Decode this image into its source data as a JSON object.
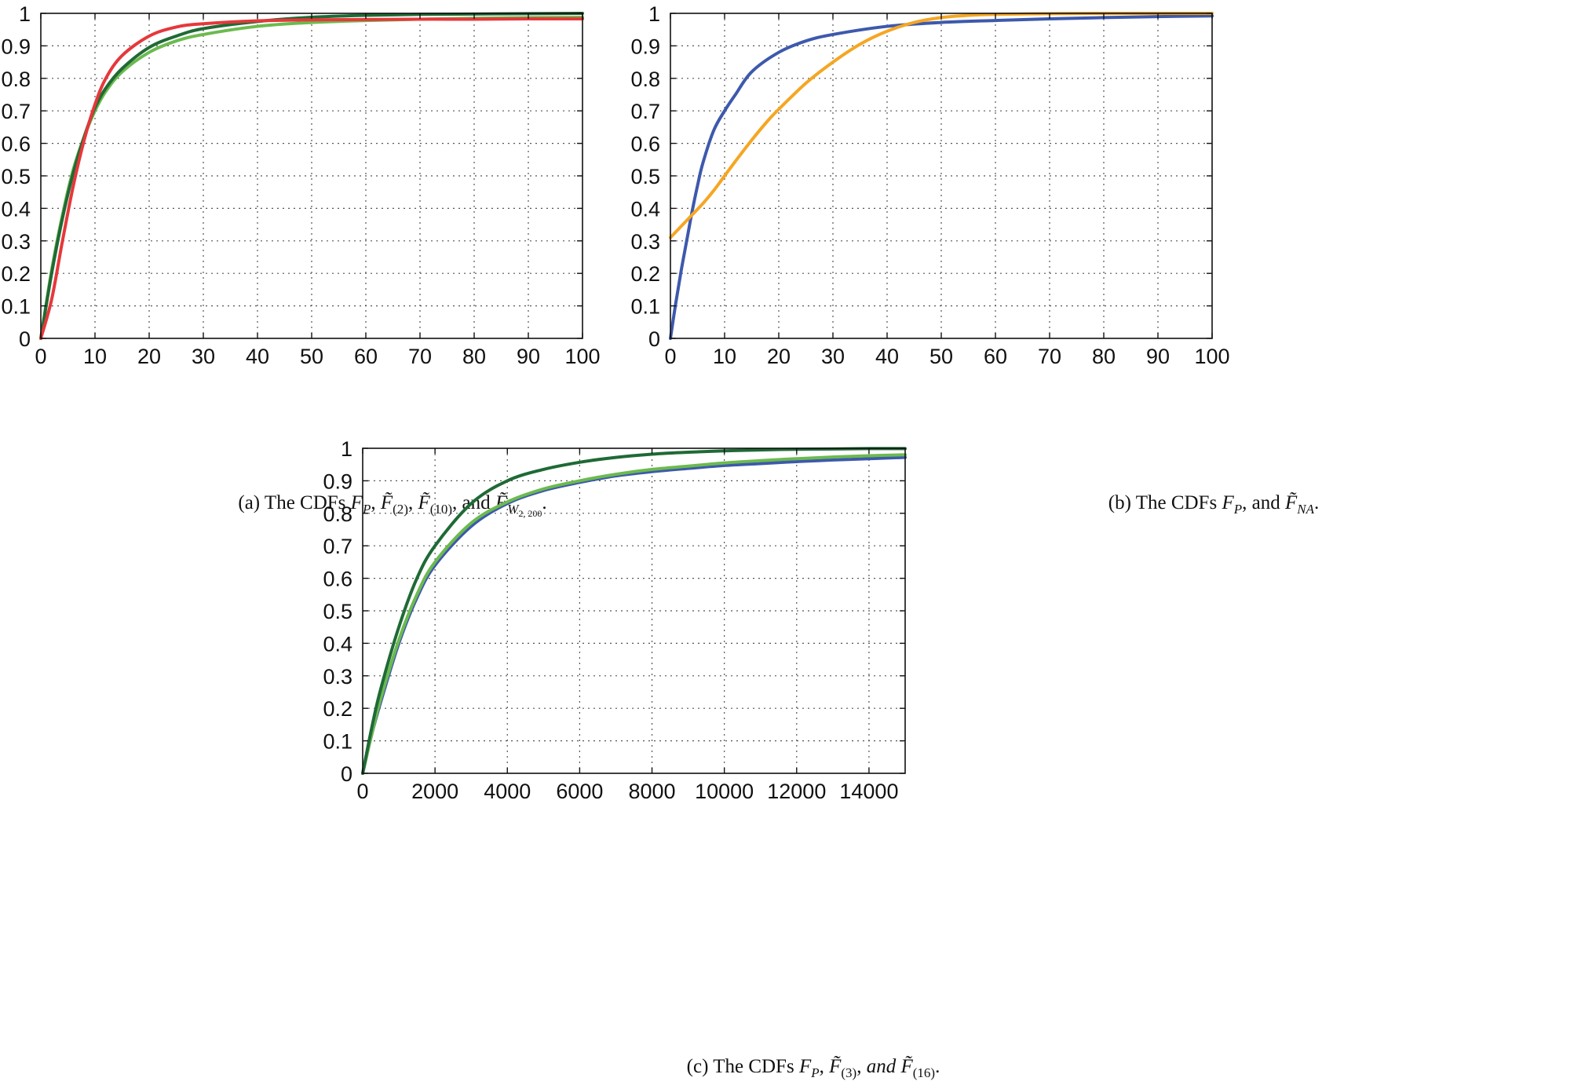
{
  "colors": {
    "dark_green": "#1f6a35",
    "light_green": "#6cba4f",
    "red": "#e5383b",
    "blue": "#3d59ac",
    "orange": "#f5a623"
  },
  "chart_data": [
    {
      "type": "line",
      "panel": "a",
      "caption": {
        "prefix": "(a) The CDFs ",
        "fp_main": "F",
        "fp_sub": "P",
        "sep1": ", ",
        "f2_main": "F̃",
        "f2_sub": "(2)",
        "sep2": ", ",
        "f10_main": "F̃",
        "f10_sub": "(10)",
        "sep3": ", and ",
        "fw_main": "F̃",
        "fw_sub": "W",
        "fw_subsub": "2, 200",
        "end": "."
      },
      "xlim": [
        0,
        100
      ],
      "ylim": [
        0,
        1
      ],
      "xticks": [
        "0",
        "10",
        "20",
        "30",
        "40",
        "50",
        "60",
        "70",
        "80",
        "90",
        "100"
      ],
      "yticks": [
        "0",
        "0.1",
        "0.2",
        "0.3",
        "0.4",
        "0.5",
        "0.6",
        "0.7",
        "0.8",
        "0.9",
        "1"
      ],
      "grid": true,
      "series": [
        {
          "color": "light_green",
          "x": [
            0,
            2,
            4,
            6,
            8,
            10,
            12,
            15,
            20,
            25,
            30,
            40,
            50,
            60,
            70,
            80,
            90,
            100
          ],
          "y": [
            0,
            0.21,
            0.38,
            0.52,
            0.62,
            0.7,
            0.76,
            0.82,
            0.88,
            0.915,
            0.935,
            0.96,
            0.972,
            0.978,
            0.982,
            0.985,
            0.987,
            0.988
          ]
        },
        {
          "color": "dark_green",
          "x": [
            0,
            2,
            4,
            6,
            8,
            10,
            12,
            15,
            20,
            25,
            30,
            40,
            50,
            60,
            70,
            80,
            90,
            100
          ],
          "y": [
            0,
            0.2,
            0.37,
            0.51,
            0.62,
            0.71,
            0.77,
            0.83,
            0.895,
            0.93,
            0.953,
            0.975,
            0.988,
            0.994,
            0.997,
            0.998,
            0.999,
            1
          ]
        },
        {
          "color": "red",
          "x": [
            0,
            2,
            4,
            6,
            8,
            10,
            12,
            15,
            20,
            25,
            30,
            40,
            50,
            60,
            70,
            80,
            90,
            100
          ],
          "y": [
            0,
            0.12,
            0.3,
            0.47,
            0.61,
            0.72,
            0.8,
            0.87,
            0.93,
            0.958,
            0.968,
            0.977,
            0.98,
            0.981,
            0.982,
            0.982,
            0.983,
            0.983
          ]
        }
      ]
    },
    {
      "type": "line",
      "panel": "b",
      "caption": {
        "prefix": "(b) The CDFs ",
        "fp_main": "F",
        "fp_sub": "P",
        "sep1": ", and ",
        "fna_main": "F̃",
        "fna_sub": "NA",
        "end": "."
      },
      "xlim": [
        0,
        100
      ],
      "ylim": [
        0,
        1
      ],
      "xticks": [
        "0",
        "10",
        "20",
        "30",
        "40",
        "50",
        "60",
        "70",
        "80",
        "90",
        "100"
      ],
      "yticks": [
        "0",
        "0.1",
        "0.2",
        "0.3",
        "0.4",
        "0.5",
        "0.6",
        "0.7",
        "0.8",
        "0.9",
        "1"
      ],
      "grid": true,
      "series": [
        {
          "color": "blue",
          "x": [
            0,
            1,
            2,
            3,
            4,
            5,
            6,
            8,
            10,
            12,
            15,
            20,
            25,
            30,
            40,
            50,
            60,
            70,
            80,
            90,
            100
          ],
          "y": [
            0,
            0.11,
            0.21,
            0.3,
            0.39,
            0.47,
            0.54,
            0.64,
            0.7,
            0.75,
            0.82,
            0.88,
            0.915,
            0.935,
            0.96,
            0.972,
            0.978,
            0.983,
            0.987,
            0.99,
            0.992
          ]
        },
        {
          "color": "orange",
          "x": [
            0,
            2,
            4,
            6,
            8,
            10,
            12,
            15,
            18,
            20,
            25,
            30,
            35,
            40,
            45,
            50,
            55,
            60,
            70,
            80,
            90,
            100
          ],
          "y": [
            0.31,
            0.345,
            0.38,
            0.415,
            0.455,
            0.5,
            0.545,
            0.61,
            0.67,
            0.705,
            0.785,
            0.85,
            0.905,
            0.945,
            0.972,
            0.987,
            0.994,
            0.997,
            0.999,
            1,
            1,
            1
          ]
        }
      ]
    },
    {
      "type": "line",
      "panel": "c",
      "caption": {
        "prefix": "(c) The CDFs ",
        "fp_main": "F",
        "fp_sub": "P",
        "sep1": ", ",
        "f3_main": "F̃",
        "f3_sub": "(3)",
        "sep2": ", ",
        "and_word": "and",
        "sep3": " ",
        "f16_main": "F̃",
        "f16_sub": "(16)",
        "end": "."
      },
      "xlim": [
        0,
        15000
      ],
      "ylim": [
        0,
        1
      ],
      "xticks": [
        "0",
        "2000",
        "4000",
        "6000",
        "8000",
        "10000",
        "12000",
        "14000"
      ],
      "yticks": [
        "0",
        "0.1",
        "0.2",
        "0.3",
        "0.4",
        "0.5",
        "0.6",
        "0.7",
        "0.8",
        "0.9",
        "1"
      ],
      "grid": true,
      "series": [
        {
          "color": "blue",
          "x": [
            0,
            250,
            500,
            1000,
            1500,
            2000,
            3000,
            4000,
            5000,
            6000,
            7000,
            8000,
            9000,
            10000,
            11000,
            12000,
            13000,
            14000,
            15000
          ],
          "y": [
            0,
            0.12,
            0.22,
            0.4,
            0.54,
            0.64,
            0.76,
            0.83,
            0.87,
            0.895,
            0.915,
            0.928,
            0.938,
            0.947,
            0.953,
            0.959,
            0.964,
            0.968,
            0.972
          ]
        },
        {
          "color": "light_green",
          "x": [
            0,
            250,
            500,
            1000,
            1500,
            2000,
            3000,
            4000,
            5000,
            6000,
            7000,
            8000,
            9000,
            10000,
            11000,
            12000,
            13000,
            14000,
            15000
          ],
          "y": [
            0,
            0.12,
            0.23,
            0.41,
            0.55,
            0.65,
            0.77,
            0.835,
            0.875,
            0.9,
            0.92,
            0.935,
            0.945,
            0.955,
            0.962,
            0.968,
            0.973,
            0.977,
            0.98
          ]
        },
        {
          "color": "dark_green",
          "x": [
            0,
            250,
            500,
            1000,
            1500,
            2000,
            3000,
            4000,
            5000,
            6000,
            7000,
            8000,
            9000,
            10000,
            11000,
            12000,
            13000,
            14000,
            15000
          ],
          "y": [
            0,
            0.14,
            0.26,
            0.45,
            0.6,
            0.7,
            0.83,
            0.9,
            0.935,
            0.957,
            0.972,
            0.982,
            0.988,
            0.992,
            0.995,
            0.997,
            0.998,
            0.999,
            0.999
          ]
        }
      ]
    }
  ]
}
